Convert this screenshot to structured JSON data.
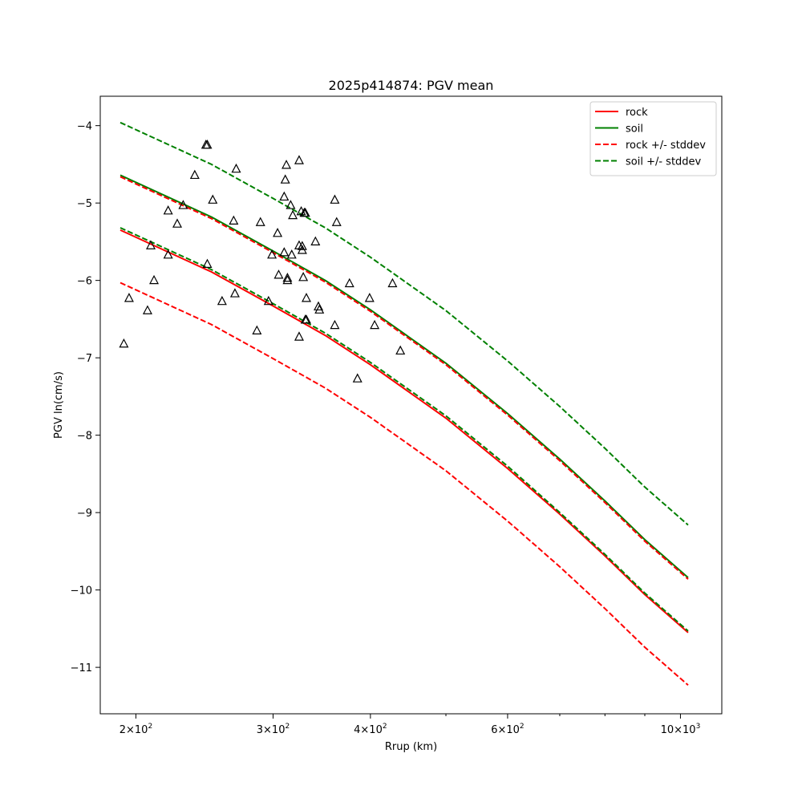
{
  "chart_data": {
    "type": "line",
    "title": "2025p414874: PGV mean",
    "xlabel": "Rrup (km)",
    "ylabel": "PGV ln(cm/s)",
    "x_scale": "log",
    "xlim": [
      180,
      1130
    ],
    "ylim": [
      -11.6,
      -3.62
    ],
    "x_ticks": [
      {
        "value": 200,
        "base": "2",
        "exp": "2"
      },
      {
        "value": 300,
        "base": "3",
        "exp": "2"
      },
      {
        "value": 400,
        "base": "4",
        "exp": "2"
      },
      {
        "value": 600,
        "base": "6",
        "exp": "2"
      },
      {
        "value": 1000,
        "base": "10",
        "exp": "3"
      }
    ],
    "x_minor_ticks": [
      500,
      700,
      800,
      900
    ],
    "y_ticks": [
      {
        "value": -4,
        "label": "−4"
      },
      {
        "value": -5,
        "label": "−5"
      },
      {
        "value": -6,
        "label": "−6"
      },
      {
        "value": -7,
        "label": "−7"
      },
      {
        "value": -8,
        "label": "−8"
      },
      {
        "value": -9,
        "label": "−9"
      },
      {
        "value": -10,
        "label": "−10"
      },
      {
        "value": -11,
        "label": "−11"
      }
    ],
    "grid": false,
    "legend_position": "top-right",
    "x": [
      191,
      250,
      300,
      350,
      400,
      500,
      600,
      700,
      800,
      900,
      1023
    ],
    "series": [
      {
        "name": "rock",
        "color": "#ff0000",
        "dash": false,
        "legend": true,
        "values": [
          -5.35,
          -5.89,
          -6.33,
          -6.71,
          -7.09,
          -7.78,
          -8.43,
          -9.02,
          -9.56,
          -10.06,
          -10.55
        ]
      },
      {
        "name": "soil",
        "color": "#008000",
        "dash": false,
        "legend": true,
        "values": [
          -4.64,
          -5.18,
          -5.62,
          -6.0,
          -6.38,
          -7.07,
          -7.72,
          -8.31,
          -8.85,
          -9.35,
          -9.84
        ]
      },
      {
        "name": "rock +/- stddev",
        "color": "#ff0000",
        "dash": true,
        "legend": true,
        "values": [
          -4.66,
          -5.2,
          -5.64,
          -6.02,
          -6.4,
          -7.09,
          -7.74,
          -8.33,
          -8.87,
          -9.37,
          -9.86
        ]
      },
      {
        "color": "#ff0000",
        "dash": true,
        "legend": false,
        "values": [
          -6.03,
          -6.57,
          -7.01,
          -7.39,
          -7.77,
          -8.46,
          -9.11,
          -9.7,
          -10.24,
          -10.74,
          -11.23
        ]
      },
      {
        "name": "soil +/- stddev",
        "color": "#008000",
        "dash": true,
        "legend": true,
        "values": [
          -3.96,
          -4.5,
          -4.94,
          -5.32,
          -5.7,
          -6.39,
          -7.04,
          -7.63,
          -8.17,
          -8.67,
          -9.16
        ]
      },
      {
        "color": "#008000",
        "dash": true,
        "legend": false,
        "values": [
          -5.32,
          -5.86,
          -6.3,
          -6.68,
          -7.06,
          -7.75,
          -8.4,
          -9.0,
          -9.54,
          -10.04,
          -10.53
        ]
      }
    ],
    "scatter": {
      "marker": "triangle",
      "color": "#000000",
      "points": [
        [
          193,
          -6.82
        ],
        [
          196,
          -6.23
        ],
        [
          207,
          -6.39
        ],
        [
          209,
          -5.55
        ],
        [
          211,
          -6.0
        ],
        [
          220,
          -5.67
        ],
        [
          220,
          -5.1
        ],
        [
          226,
          -5.27
        ],
        [
          230,
          -5.03
        ],
        [
          238,
          -4.64
        ],
        [
          246,
          -4.25
        ],
        [
          247,
          -4.25
        ],
        [
          247,
          -5.79
        ],
        [
          251,
          -4.96
        ],
        [
          258,
          -6.27
        ],
        [
          267,
          -5.23
        ],
        [
          268,
          -6.17
        ],
        [
          269,
          -4.56
        ],
        [
          286,
          -6.65
        ],
        [
          289,
          -5.25
        ],
        [
          296,
          -6.27
        ],
        [
          299,
          -5.67
        ],
        [
          304,
          -5.39
        ],
        [
          305,
          -5.93
        ],
        [
          310,
          -5.64
        ],
        [
          310,
          -4.92
        ],
        [
          311,
          -4.7
        ],
        [
          312,
          -4.51
        ],
        [
          313,
          -5.97
        ],
        [
          313,
          -6.0
        ],
        [
          316,
          -5.03
        ],
        [
          317,
          -5.67
        ],
        [
          318,
          -5.16
        ],
        [
          324,
          -4.45
        ],
        [
          324,
          -5.55
        ],
        [
          324,
          -6.73
        ],
        [
          326,
          -5.11
        ],
        [
          327,
          -5.56
        ],
        [
          327,
          -5.61
        ],
        [
          328,
          -5.96
        ],
        [
          329,
          -5.13
        ],
        [
          330,
          -5.13
        ],
        [
          330,
          -6.51
        ],
        [
          331,
          -6.51
        ],
        [
          331,
          -6.23
        ],
        [
          340,
          -5.5
        ],
        [
          343,
          -6.34
        ],
        [
          344,
          -6.38
        ],
        [
          360,
          -6.58
        ],
        [
          360,
          -4.96
        ],
        [
          362,
          -5.25
        ],
        [
          376,
          -6.04
        ],
        [
          385,
          -7.27
        ],
        [
          399,
          -6.23
        ],
        [
          405,
          -6.58
        ],
        [
          427,
          -6.04
        ],
        [
          437,
          -6.91
        ]
      ]
    }
  }
}
